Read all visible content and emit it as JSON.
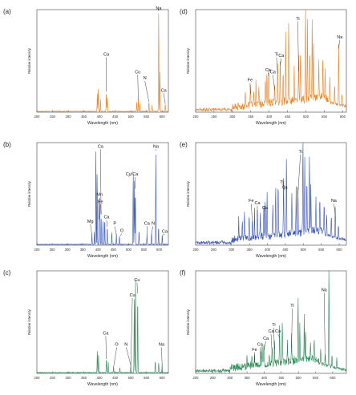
{
  "figure": {
    "chart_data": [
      {
        "panel": "(a)",
        "type": "line",
        "color": "#e8832a",
        "xlabel": "Wavelength (nm)",
        "ylabel": "Relative intensity",
        "xlim": [
          200,
          620
        ],
        "ylim": [
          0,
          100
        ],
        "log_y": false,
        "grid": false,
        "xticks": [
          200,
          250,
          300,
          350,
          400,
          450,
          500,
          550,
          600
        ],
        "peaks": [
          {
            "x": 393,
            "y": 18
          },
          {
            "x": 396,
            "y": 22
          },
          {
            "x": 403,
            "y": 12
          },
          {
            "x": 422,
            "y": 20
          },
          {
            "x": 425,
            "y": 14
          },
          {
            "x": 519,
            "y": 9
          },
          {
            "x": 524,
            "y": 12
          },
          {
            "x": 529,
            "y": 8
          },
          {
            "x": 558,
            "y": 10
          },
          {
            "x": 568,
            "y": 6
          },
          {
            "x": 589,
            "y": 100
          },
          {
            "x": 593,
            "y": 40
          },
          {
            "x": 610,
            "y": 8
          }
        ],
        "annotations": [
          {
            "text": "Na",
            "x": 589,
            "y": 100
          },
          {
            "text": "Ca",
            "x": 422,
            "y": 55
          },
          {
            "text": "Cu",
            "x": 522,
            "y": 38
          },
          {
            "text": "N",
            "x": 545,
            "y": 32
          },
          {
            "text": "Ca",
            "x": 605,
            "y": 20
          }
        ]
      },
      {
        "panel": "(b)",
        "type": "line",
        "color": "#3a56b0",
        "xlabel": "Wavelength (nm)",
        "ylabel": "Relative intensity",
        "xlim": [
          200,
          630
        ],
        "ylim": [
          0,
          100
        ],
        "log_y": false,
        "grid": false,
        "xticks": [
          200,
          250,
          300,
          350,
          400,
          450,
          500,
          550,
          600
        ],
        "peaks": [
          {
            "x": 380,
            "y": 10
          },
          {
            "x": 388,
            "y": 12
          },
          {
            "x": 393,
            "y": 95
          },
          {
            "x": 397,
            "y": 72
          },
          {
            "x": 403,
            "y": 45
          },
          {
            "x": 405,
            "y": 40
          },
          {
            "x": 410,
            "y": 30
          },
          {
            "x": 416,
            "y": 22
          },
          {
            "x": 422,
            "y": 26
          },
          {
            "x": 430,
            "y": 18
          },
          {
            "x": 445,
            "y": 12
          },
          {
            "x": 460,
            "y": 10
          },
          {
            "x": 470,
            "y": 8
          },
          {
            "x": 515,
            "y": 72
          },
          {
            "x": 519,
            "y": 65
          },
          {
            "x": 522,
            "y": 55
          },
          {
            "x": 534,
            "y": 14
          },
          {
            "x": 560,
            "y": 10
          },
          {
            "x": 575,
            "y": 12
          },
          {
            "x": 589,
            "y": 92
          },
          {
            "x": 598,
            "y": 18
          },
          {
            "x": 610,
            "y": 10
          }
        ],
        "annotations": [
          {
            "text": "Ca",
            "x": 408,
            "y": 95
          },
          {
            "text": "Na",
            "x": 589,
            "y": 95
          },
          {
            "text": "Cu",
            "x": 500,
            "y": 68
          },
          {
            "text": "Ca",
            "x": 522,
            "y": 68
          },
          {
            "text": "Mn",
            "x": 405,
            "y": 48
          },
          {
            "text": "Fe",
            "x": 408,
            "y": 41
          },
          {
            "text": "Ca",
            "x": 428,
            "y": 26
          },
          {
            "text": "P",
            "x": 455,
            "y": 20
          },
          {
            "text": "O",
            "x": 478,
            "y": 13
          },
          {
            "text": "Mg",
            "x": 375,
            "y": 22
          },
          {
            "text": "Ca",
            "x": 560,
            "y": 20
          },
          {
            "text": "N",
            "x": 580,
            "y": 20
          },
          {
            "text": "Ca",
            "x": 618,
            "y": 12
          }
        ]
      },
      {
        "panel": "(c)",
        "type": "line",
        "color": "#2e8a57",
        "xlabel": "Wavelength (nm)",
        "ylabel": "Relative intensity",
        "xlim": [
          200,
          620
        ],
        "ylim": [
          0,
          100
        ],
        "log_y": false,
        "grid": false,
        "xticks": [
          200,
          250,
          300,
          350,
          400,
          450,
          500,
          550,
          600
        ],
        "peaks": [
          {
            "x": 393,
            "y": 22
          },
          {
            "x": 397,
            "y": 18
          },
          {
            "x": 422,
            "y": 14
          },
          {
            "x": 428,
            "y": 10
          },
          {
            "x": 445,
            "y": 6
          },
          {
            "x": 465,
            "y": 5
          },
          {
            "x": 500,
            "y": 8
          },
          {
            "x": 511,
            "y": 75
          },
          {
            "x": 515,
            "y": 95
          },
          {
            "x": 522,
            "y": 78
          },
          {
            "x": 578,
            "y": 12
          },
          {
            "x": 589,
            "y": 10
          },
          {
            "x": 600,
            "y": 8
          }
        ],
        "annotations": [
          {
            "text": "Cu",
            "x": 505,
            "y": 75
          },
          {
            "text": "Cu",
            "x": 520,
            "y": 90
          },
          {
            "text": "Ca",
            "x": 420,
            "y": 38
          },
          {
            "text": "O",
            "x": 455,
            "y": 27
          },
          {
            "text": "N",
            "x": 485,
            "y": 27
          },
          {
            "text": "Na",
            "x": 598,
            "y": 27
          }
        ]
      },
      {
        "panel": "(d)",
        "type": "line",
        "color": "#e8832a",
        "xlabel": "Wavelength (nm)",
        "ylabel": "Relative intensity",
        "xlim": [
          200,
          610
        ],
        "ylim": [
          0,
          100
        ],
        "log_y": false,
        "grid": false,
        "xticks": [
          200,
          250,
          300,
          350,
          400,
          450,
          500,
          550,
          600
        ],
        "peaks": [
          {
            "x": 335,
            "y": 15
          },
          {
            "x": 349,
            "y": 18
          },
          {
            "x": 358,
            "y": 14
          },
          {
            "x": 364,
            "y": 22
          },
          {
            "x": 372,
            "y": 20
          },
          {
            "x": 390,
            "y": 25
          },
          {
            "x": 394,
            "y": 30
          },
          {
            "x": 399,
            "y": 35
          },
          {
            "x": 415,
            "y": 22
          },
          {
            "x": 423,
            "y": 38
          },
          {
            "x": 430,
            "y": 46
          },
          {
            "x": 438,
            "y": 28
          },
          {
            "x": 445,
            "y": 70
          },
          {
            "x": 453,
            "y": 82
          },
          {
            "x": 468,
            "y": 35
          },
          {
            "x": 480,
            "y": 40
          },
          {
            "x": 485,
            "y": 48
          },
          {
            "x": 499,
            "y": 100
          },
          {
            "x": 504,
            "y": 75
          },
          {
            "x": 510,
            "y": 50
          },
          {
            "x": 517,
            "y": 80
          },
          {
            "x": 521,
            "y": 55
          },
          {
            "x": 535,
            "y": 35
          },
          {
            "x": 546,
            "y": 42
          },
          {
            "x": 552,
            "y": 30
          },
          {
            "x": 565,
            "y": 25
          },
          {
            "x": 578,
            "y": 20
          },
          {
            "x": 589,
            "y": 62
          },
          {
            "x": 598,
            "y": 12
          }
        ],
        "annotations": [
          {
            "text": "Ti",
            "x": 478,
            "y": 90
          },
          {
            "text": "Na",
            "x": 592,
            "y": 72
          },
          {
            "text": "Ti",
            "x": 420,
            "y": 55
          },
          {
            "text": "Ca",
            "x": 433,
            "y": 54
          },
          {
            "text": "Ca",
            "x": 397,
            "y": 40
          },
          {
            "text": "Ca",
            "x": 410,
            "y": 38
          },
          {
            "text": "Fe",
            "x": 348,
            "y": 30
          }
        ]
      },
      {
        "panel": "(e)",
        "type": "line",
        "color": "#3a56b0",
        "xlabel": "Wavelength (nm)",
        "ylabel": "Relative intensity",
        "xlim": [
          200,
          620
        ],
        "ylim": [
          0,
          100
        ],
        "log_y": false,
        "grid": false,
        "xticks": [
          200,
          250,
          300,
          350,
          400,
          450,
          500,
          550,
          600
        ],
        "peaks": [
          {
            "x": 320,
            "y": 20
          },
          {
            "x": 330,
            "y": 18
          },
          {
            "x": 336,
            "y": 28
          },
          {
            "x": 349,
            "y": 25
          },
          {
            "x": 358,
            "y": 22
          },
          {
            "x": 364,
            "y": 30
          },
          {
            "x": 372,
            "y": 28
          },
          {
            "x": 380,
            "y": 22
          },
          {
            "x": 390,
            "y": 32
          },
          {
            "x": 394,
            "y": 38
          },
          {
            "x": 399,
            "y": 42
          },
          {
            "x": 415,
            "y": 30
          },
          {
            "x": 423,
            "y": 45
          },
          {
            "x": 430,
            "y": 55
          },
          {
            "x": 445,
            "y": 60
          },
          {
            "x": 453,
            "y": 75
          },
          {
            "x": 468,
            "y": 40
          },
          {
            "x": 480,
            "y": 45
          },
          {
            "x": 485,
            "y": 50
          },
          {
            "x": 499,
            "y": 100
          },
          {
            "x": 504,
            "y": 70
          },
          {
            "x": 510,
            "y": 50
          },
          {
            "x": 517,
            "y": 78
          },
          {
            "x": 521,
            "y": 52
          },
          {
            "x": 535,
            "y": 30
          },
          {
            "x": 546,
            "y": 35
          },
          {
            "x": 558,
            "y": 28
          },
          {
            "x": 565,
            "y": 22
          },
          {
            "x": 578,
            "y": 20
          },
          {
            "x": 589,
            "y": 30
          },
          {
            "x": 598,
            "y": 14
          }
        ],
        "annotations": [
          {
            "text": "Ti",
            "x": 492,
            "y": 90
          },
          {
            "text": "Ti",
            "x": 440,
            "y": 60
          },
          {
            "text": "Ca",
            "x": 448,
            "y": 55
          },
          {
            "text": "Fe",
            "x": 355,
            "y": 42
          },
          {
            "text": "Ca",
            "x": 372,
            "y": 40
          },
          {
            "text": "Ca",
            "x": 393,
            "y": 35
          },
          {
            "text": "Na",
            "x": 585,
            "y": 42
          }
        ]
      },
      {
        "panel": "(f)",
        "type": "line",
        "color": "#2e8a57",
        "xlabel": "Wavelength (nm)",
        "ylabel": "Relative intensity",
        "xlim": [
          200,
          640
        ],
        "ylim": [
          0,
          100
        ],
        "log_y": false,
        "grid": false,
        "xticks": [
          200,
          250,
          300,
          350,
          400,
          450,
          500,
          550,
          600
        ],
        "peaks": [
          {
            "x": 350,
            "y": 10
          },
          {
            "x": 364,
            "y": 12
          },
          {
            "x": 372,
            "y": 10
          },
          {
            "x": 390,
            "y": 14
          },
          {
            "x": 394,
            "y": 18
          },
          {
            "x": 399,
            "y": 22
          },
          {
            "x": 415,
            "y": 12
          },
          {
            "x": 423,
            "y": 20
          },
          {
            "x": 430,
            "y": 24
          },
          {
            "x": 445,
            "y": 35
          },
          {
            "x": 453,
            "y": 42
          },
          {
            "x": 468,
            "y": 22
          },
          {
            "x": 480,
            "y": 25
          },
          {
            "x": 499,
            "y": 62
          },
          {
            "x": 504,
            "y": 40
          },
          {
            "x": 517,
            "y": 45
          },
          {
            "x": 521,
            "y": 30
          },
          {
            "x": 535,
            "y": 18
          },
          {
            "x": 546,
            "y": 20
          },
          {
            "x": 565,
            "y": 14
          },
          {
            "x": 578,
            "y": 12
          },
          {
            "x": 589,
            "y": 100
          },
          {
            "x": 598,
            "y": 12
          },
          {
            "x": 612,
            "y": 10
          }
        ],
        "annotations": [
          {
            "text": "Na",
            "x": 575,
            "y": 80
          },
          {
            "text": "Ti",
            "x": 482,
            "y": 65
          },
          {
            "text": "Ti",
            "x": 428,
            "y": 46
          },
          {
            "text": "Ca",
            "x": 420,
            "y": 40
          },
          {
            "text": "Ca",
            "x": 440,
            "y": 40
          },
          {
            "text": "Ca",
            "x": 405,
            "y": 33
          },
          {
            "text": "Ca",
            "x": 388,
            "y": 27
          },
          {
            "text": "Fe",
            "x": 372,
            "y": 22
          }
        ]
      }
    ]
  }
}
